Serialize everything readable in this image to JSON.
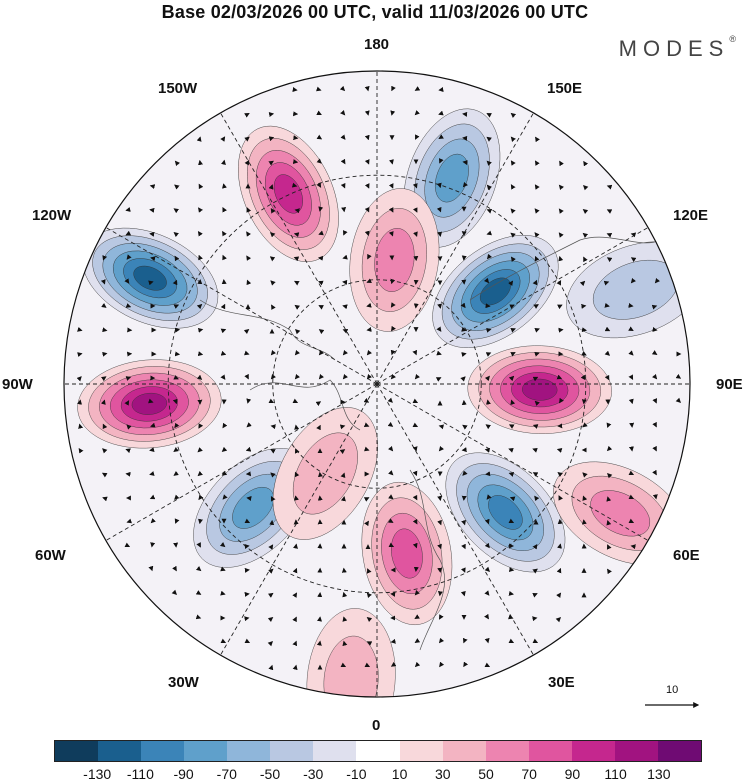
{
  "title": "Base 02/03/2026 00 UTC, valid 11/03/2026 00 UTC",
  "brand": "MODES",
  "brand_mark": "®",
  "longitude_labels": {
    "n180": "180",
    "w150": "150W",
    "e150": "150E",
    "w120": "120W",
    "e120": "120E",
    "w90": "90W",
    "e90": "90E",
    "w60": "60W",
    "e60": "60E",
    "w30": "30W",
    "e30": "30E",
    "s0": "0"
  },
  "vector_scale": {
    "value": "10"
  },
  "colorbar": {
    "colors": [
      "#0f3c5c",
      "#1a5f8e",
      "#3b84b8",
      "#5fa0cb",
      "#8fb6da",
      "#b9c8e2",
      "#dfe0ee",
      "#ffffff",
      "#f8d8db",
      "#f3b4c2",
      "#ed84b0",
      "#e0559f",
      "#c5278e",
      "#a11380",
      "#6f0b73"
    ],
    "labels": [
      "-130",
      "-110",
      "-90",
      "-70",
      "-50",
      "-30",
      "-10",
      "10",
      "30",
      "50",
      "70",
      "90",
      "110",
      "130"
    ]
  },
  "anomaly_centers": [
    {
      "lon": 160,
      "r": 0.7,
      "value": -60
    },
    {
      "lon": -155,
      "r": 0.67,
      "value": 85
    },
    {
      "lon": -115,
      "r": 0.8,
      "value": -115
    },
    {
      "lon": -85,
      "r": 0.73,
      "value": 110
    },
    {
      "lon": -45,
      "r": 0.56,
      "value": -65
    },
    {
      "lon": -30,
      "r": 0.33,
      "value": 35
    },
    {
      "lon": 10,
      "r": 0.55,
      "value": 70
    },
    {
      "lon": 45,
      "r": 0.58,
      "value": -95
    },
    {
      "lon": 62,
      "r": 0.88,
      "value": 40
    },
    {
      "lon": 88,
      "r": 0.52,
      "value": 110
    },
    {
      "lon": 128,
      "r": 0.48,
      "value": -100
    },
    {
      "lon": 172,
      "r": 0.4,
      "value": 50
    },
    {
      "lon": -5,
      "r": 0.95,
      "value": 20
    },
    {
      "lon": 110,
      "r": 0.88,
      "value": -25
    }
  ]
}
